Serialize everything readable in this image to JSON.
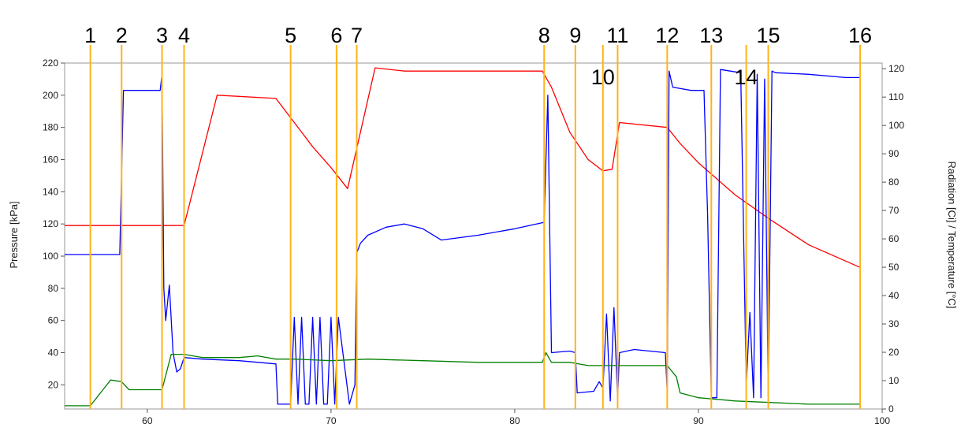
{
  "chart_data": {
    "type": "line",
    "title": "",
    "xlabel": "",
    "ylabel_left": "Pressure [kPa]",
    "ylabel_right": "Radiation [Ci] / Temperature [°C]",
    "xlim": [
      55.5,
      100
    ],
    "ylim_left": [
      5,
      220
    ],
    "ylim_right": [
      0,
      122
    ],
    "x_ticks": [
      60,
      70,
      80,
      90,
      100
    ],
    "y_ticks_left": [
      20,
      40,
      60,
      80,
      100,
      120,
      140,
      160,
      180,
      200,
      220
    ],
    "y_ticks_right": [
      0,
      10,
      20,
      30,
      40,
      50,
      60,
      70,
      80,
      90,
      100,
      110,
      120
    ],
    "grid": false,
    "legend": "none",
    "markers": [
      {
        "label": "1",
        "x": 56.9
      },
      {
        "label": "2",
        "x": 58.6
      },
      {
        "label": "3",
        "x": 60.8
      },
      {
        "label": "4",
        "x": 62.0
      },
      {
        "label": "5",
        "x": 67.8
      },
      {
        "label": "6",
        "x": 70.3
      },
      {
        "label": "7",
        "x": 71.4
      },
      {
        "label": "8",
        "x": 81.6
      },
      {
        "label": "9",
        "x": 83.3
      },
      {
        "label": "10",
        "x": 84.8
      },
      {
        "label": "11",
        "x": 85.6
      },
      {
        "label": "12",
        "x": 88.3
      },
      {
        "label": "13",
        "x": 90.7
      },
      {
        "label": "14",
        "x": 92.6
      },
      {
        "label": "15",
        "x": 93.8
      },
      {
        "label": "16",
        "x": 98.8
      }
    ],
    "series": [
      {
        "color": "#ff0000",
        "axis": "left",
        "x": [
          55.5,
          62.0,
          63.8,
          67.0,
          68.0,
          69.0,
          70.0,
          70.9,
          72.4,
          74.0,
          81.5,
          82.0,
          83.0,
          84.0,
          84.8,
          85.3,
          85.7,
          88.3,
          89.0,
          90.0,
          92.0,
          94.0,
          96.0,
          98.8
        ],
        "y": [
          119,
          119,
          200,
          198,
          183,
          168,
          155,
          142,
          217,
          215,
          215,
          205,
          177,
          160,
          153,
          154,
          183,
          180,
          170,
          158,
          138,
          122,
          107,
          93
        ]
      },
      {
        "color": "#0000ff",
        "axis": "left",
        "x": [
          55.5,
          58.5,
          58.7,
          60.7,
          60.8,
          60.9,
          61.0,
          61.2,
          61.4,
          61.6,
          61.8,
          62.0,
          63.0,
          65.0,
          67.0,
          67.1,
          67.8,
          68.0,
          68.2,
          68.4,
          68.6,
          68.8,
          69.0,
          69.2,
          69.4,
          69.6,
          69.8,
          70.0,
          70.2,
          70.4,
          71.0,
          71.3,
          71.4,
          71.6,
          72.0,
          73.0,
          74.0,
          75.0,
          76.0,
          78.0,
          80.0,
          81.6,
          81.8,
          82.0,
          83.0,
          83.3,
          83.4,
          84.3,
          84.6,
          84.8,
          85.0,
          85.2,
          85.4,
          85.6,
          85.7,
          86.5,
          88.2,
          88.3,
          88.4,
          88.6,
          89.6,
          90.3,
          90.5,
          90.7,
          91.0,
          91.2,
          92.3,
          92.6,
          92.8,
          93.0,
          93.2,
          93.4,
          93.6,
          93.8,
          94.0,
          94.2,
          96.0,
          98.0,
          98.8
        ],
        "y": [
          101,
          101,
          203,
          203,
          213,
          80,
          60,
          82,
          40,
          28,
          30,
          37,
          36,
          35,
          33,
          8,
          8,
          62,
          8,
          62,
          8,
          8,
          62,
          8,
          62,
          8,
          8,
          62,
          8,
          62,
          8,
          20,
          102,
          108,
          113,
          118,
          120,
          117,
          110,
          113,
          117,
          121,
          200,
          40,
          41,
          40,
          15,
          16,
          22,
          18,
          64,
          10,
          68,
          12,
          40,
          42,
          40,
          15,
          215,
          205,
          203,
          203,
          125,
          12,
          12,
          216,
          214,
          20,
          65,
          12,
          213,
          12,
          210,
          12,
          215,
          214,
          213,
          211,
          211
        ]
      },
      {
        "color": "#008000",
        "axis": "left",
        "x": [
          55.5,
          56.9,
          58.0,
          58.6,
          59.0,
          60.8,
          61.3,
          62.0,
          63.0,
          65.0,
          66.0,
          67.0,
          68.0,
          70.0,
          72.0,
          75.0,
          78.0,
          81.5,
          81.7,
          82.0,
          83.0,
          84.0,
          85.0,
          88.3,
          88.8,
          89.0,
          90.0,
          92.0,
          94.0,
          96.0,
          98.8
        ],
        "y": [
          7,
          7,
          23,
          22,
          17,
          17,
          39,
          39,
          37,
          37,
          38,
          36,
          36,
          35,
          36,
          35,
          34,
          34,
          40,
          34,
          34,
          32,
          32,
          32,
          25,
          15,
          12,
          10,
          9,
          8,
          8
        ]
      }
    ]
  }
}
